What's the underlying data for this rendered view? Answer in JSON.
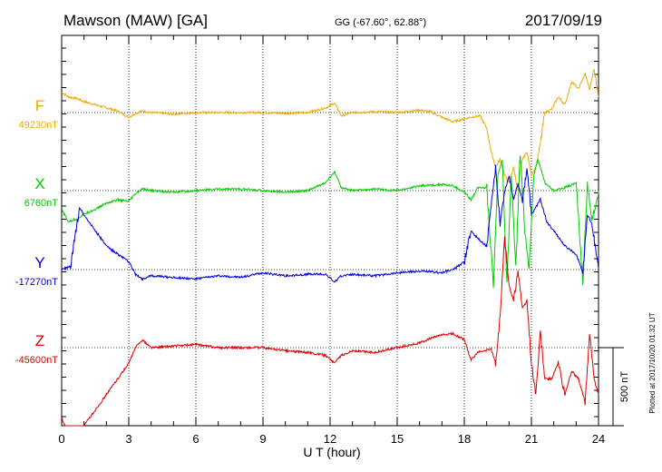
{
  "header": {
    "station": "Mawson (MAW)  [GA]",
    "coords": "GG (-67.60°,  62.88°)",
    "date": "2017/09/19"
  },
  "side_note": "Plotted at 2017/10/20 01:32 UT",
  "scale_label": "500 nT",
  "chart_data": {
    "type": "line",
    "xlabel": "U T (hour)",
    "xlim": [
      0,
      24
    ],
    "x_ticks": [
      0,
      3,
      6,
      9,
      12,
      15,
      18,
      21,
      24
    ],
    "x_tick_labels": [
      "0",
      "3",
      "6",
      "9",
      "12",
      "15",
      "18",
      "21",
      "24"
    ],
    "grid": true,
    "scale_bar_nT": 500,
    "series": [
      {
        "name": "F",
        "baseline_label": "49230nT",
        "baseline_nT": 49230,
        "color": "#f0a800",
        "x": [
          0,
          0.3,
          0.7,
          1.0,
          1.5,
          2.0,
          2.5,
          3.0,
          3.3,
          3.6,
          4.0,
          5.0,
          6.0,
          7.0,
          8.0,
          9.0,
          10.0,
          11.0,
          11.8,
          12.2,
          12.5,
          13.0,
          14.0,
          15.0,
          16.0,
          16.5,
          17.0,
          17.5,
          18.0,
          18.3,
          18.7,
          19.0,
          19.2,
          19.4,
          19.6,
          19.8,
          20.0,
          20.2,
          20.4,
          20.6,
          20.8,
          21.0,
          21.2,
          21.4,
          21.6,
          21.9,
          22.2,
          22.5,
          22.8,
          23.1,
          23.4,
          23.6,
          23.8,
          24.0
        ],
        "values": [
          130,
          100,
          90,
          70,
          50,
          30,
          10,
          -30,
          -5,
          10,
          0,
          -10,
          0,
          0,
          0,
          0,
          -5,
          0,
          30,
          60,
          -20,
          0,
          5,
          0,
          15,
          5,
          -30,
          -60,
          -40,
          -30,
          -20,
          -100,
          -250,
          -350,
          -300,
          -400,
          -450,
          -350,
          -500,
          -300,
          -250,
          -400,
          -350,
          -200,
          0,
          20,
          100,
          50,
          200,
          150,
          250,
          150,
          280,
          100
        ]
      },
      {
        "name": "X",
        "baseline_label": "6760nT",
        "baseline_nT": 6760,
        "color": "#00cc00",
        "x": [
          0,
          0.3,
          0.7,
          1.0,
          1.5,
          2.0,
          2.5,
          3.0,
          3.3,
          3.6,
          4.0,
          5.0,
          6.0,
          7.0,
          8.0,
          9.0,
          10.0,
          11.0,
          11.8,
          12.2,
          12.5,
          13.0,
          14.0,
          15.0,
          16.0,
          17.0,
          17.5,
          18.0,
          18.3,
          18.6,
          19.0,
          19.3,
          19.5,
          19.7,
          19.9,
          20.1,
          20.3,
          20.5,
          20.7,
          20.9,
          21.1,
          21.3,
          21.6,
          22.0,
          22.5,
          23.0,
          23.3,
          23.5,
          23.7,
          24.0
        ],
        "values": [
          -120,
          -200,
          -180,
          -150,
          -120,
          -80,
          -60,
          -70,
          -20,
          10,
          0,
          -10,
          0,
          10,
          10,
          0,
          -10,
          0,
          50,
          120,
          20,
          0,
          10,
          0,
          30,
          40,
          30,
          -10,
          -60,
          20,
          20,
          -600,
          100,
          200,
          -600,
          100,
          -500,
          250,
          -250,
          -500,
          100,
          200,
          50,
          0,
          20,
          50,
          -600,
          50,
          -200,
          0
        ]
      },
      {
        "name": "Y",
        "baseline_label": "-17270nT",
        "baseline_nT": -17270,
        "color": "#0000dd",
        "x": [
          0,
          0.4,
          0.8,
          1.0,
          1.5,
          2.0,
          2.5,
          3.0,
          3.3,
          3.6,
          4.0,
          5.0,
          6.0,
          7.0,
          8.0,
          9.0,
          10.0,
          11.0,
          11.8,
          12.2,
          12.5,
          13.0,
          14.0,
          15.0,
          16.0,
          17.0,
          17.5,
          18.0,
          18.3,
          18.6,
          19.0,
          19.2,
          19.4,
          19.6,
          19.8,
          20.0,
          20.2,
          20.4,
          20.6,
          20.8,
          21.0,
          21.2,
          21.4,
          21.7,
          22.0,
          22.5,
          23.0,
          23.3,
          23.5,
          23.7,
          24.0
        ],
        "values": [
          0,
          20,
          400,
          350,
          250,
          150,
          100,
          50,
          -30,
          -60,
          -40,
          -50,
          -60,
          -40,
          -50,
          -20,
          -40,
          -30,
          -30,
          -80,
          -40,
          -30,
          -40,
          -20,
          -10,
          -20,
          0,
          50,
          250,
          200,
          150,
          400,
          650,
          300,
          500,
          600,
          450,
          550,
          450,
          650,
          350,
          400,
          450,
          300,
          250,
          150,
          100,
          -20,
          350,
          300,
          0
        ]
      },
      {
        "name": "Z",
        "baseline_label": "-45600nT",
        "baseline_nT": -45600,
        "color": "#dd0000",
        "x": [
          0,
          0.3,
          0.7,
          1.0,
          1.5,
          2.0,
          2.5,
          3.0,
          3.3,
          3.6,
          4.0,
          5.0,
          6.0,
          7.0,
          8.0,
          9.0,
          10.0,
          11.0,
          11.8,
          12.2,
          12.5,
          13.0,
          14.0,
          15.0,
          16.0,
          16.5,
          17.0,
          17.5,
          18.0,
          18.3,
          18.6,
          18.9,
          19.2,
          19.4,
          19.6,
          19.8,
          20.0,
          20.2,
          20.4,
          20.6,
          20.8,
          21.0,
          21.2,
          21.4,
          21.6,
          21.9,
          22.2,
          22.5,
          22.8,
          23.1,
          23.4,
          23.6,
          23.8,
          24.0
        ],
        "values": [
          -450,
          -550,
          -600,
          -500,
          -400,
          -300,
          -200,
          -100,
          0,
          50,
          0,
          10,
          20,
          0,
          0,
          0,
          -20,
          -30,
          -50,
          -100,
          -50,
          -20,
          -30,
          0,
          30,
          60,
          80,
          90,
          50,
          -80,
          -30,
          -20,
          -10,
          -100,
          200,
          700,
          400,
          300,
          500,
          250,
          300,
          -100,
          -300,
          100,
          -200,
          -200,
          -100,
          -300,
          -150,
          -200,
          -350,
          100,
          -200,
          -300
        ]
      }
    ]
  }
}
